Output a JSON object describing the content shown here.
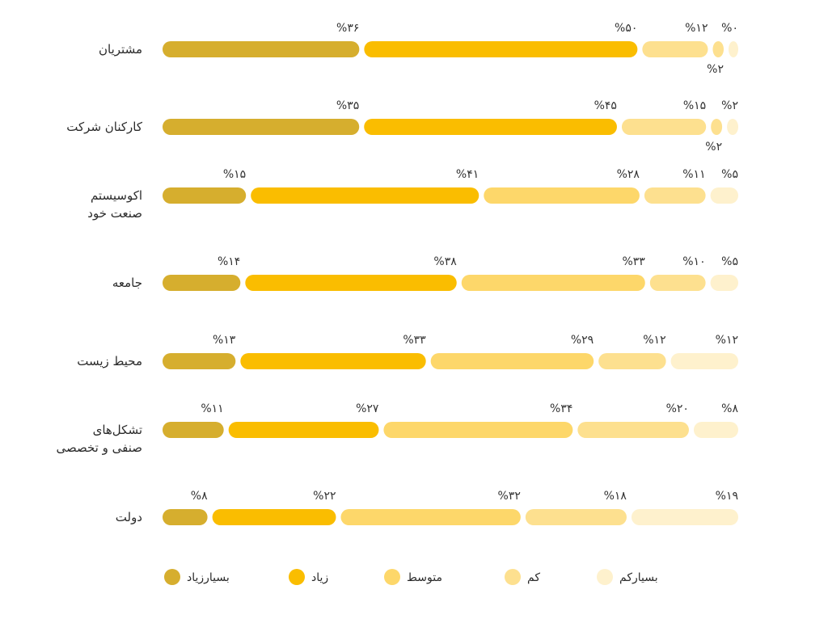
{
  "chart_data": {
    "type": "bar",
    "stacked": true,
    "normalized": true,
    "orientation": "horizontal",
    "direction": "rtl",
    "unit": "%",
    "categories": [
      [
        "مشتریان"
      ],
      [
        "کارکنان شرکت"
      ],
      [
        "اکوسیستم",
        "صنعت خود"
      ],
      [
        "جامعه"
      ],
      [
        "محیط زیست"
      ],
      [
        "تشکل‌های",
        "صنفی و تخصصی"
      ],
      [
        "دولت"
      ]
    ],
    "series": [
      {
        "name": "بسیارزیاد",
        "color": "#D6AE2E",
        "values": [
          36,
          35,
          15,
          14,
          13,
          11,
          8
        ],
        "labels": [
          "%۳۶",
          "%۳۵",
          "%۱۵",
          "%۱۴",
          "%۱۳",
          "%۱۱",
          "%۸"
        ]
      },
      {
        "name": "زیاد",
        "color": "#FABD00",
        "values": [
          50,
          45,
          41,
          38,
          33,
          27,
          22
        ],
        "labels": [
          "%۵۰",
          "%۴۵",
          "%۴۱",
          "%۳۸",
          "%۳۳",
          "%۲۷",
          "%۲۲"
        ]
      },
      {
        "name": "متوسط",
        "color": "#FDD76A",
        "values": [
          0,
          0,
          28,
          33,
          29,
          34,
          32
        ],
        "labels": [
          "",
          "",
          "%۲۸",
          "%۳۳",
          "%۲۹",
          "%۳۴",
          "%۳۲"
        ]
      },
      {
        "name": "کم",
        "color": "#FDE08F",
        "values": [
          12,
          15,
          11,
          10,
          12,
          20,
          18
        ],
        "labels": [
          "%۱۲",
          "%۱۵",
          "%۱۱",
          "%۱۰",
          "%۱۲",
          "%۲۰",
          "%۱۸"
        ]
      },
      {
        "name": "بسیارکم",
        "color": "#FEF1CD",
        "values": [
          0,
          2,
          5,
          5,
          12,
          8,
          19
        ],
        "labels": [
          "%۰",
          "%۲",
          "%۵",
          "%۵",
          "%۱۲",
          "%۸",
          "%۱۹"
        ]
      }
    ],
    "extra_segments": [
      {
        "row": 0,
        "after_series": 3,
        "value": 2,
        "label": "%۲",
        "color": "#FDE08F"
      },
      {
        "row": 1,
        "after_series": 3,
        "value": 2,
        "label": "%۲",
        "color": "#FDE08F"
      }
    ],
    "legend": {
      "position": "bottom",
      "items": [
        "بسیارزیاد",
        "زیاد",
        "متوسط",
        "کم",
        "بسیارکم"
      ]
    },
    "xlim": [
      0,
      100
    ],
    "grid": false
  }
}
